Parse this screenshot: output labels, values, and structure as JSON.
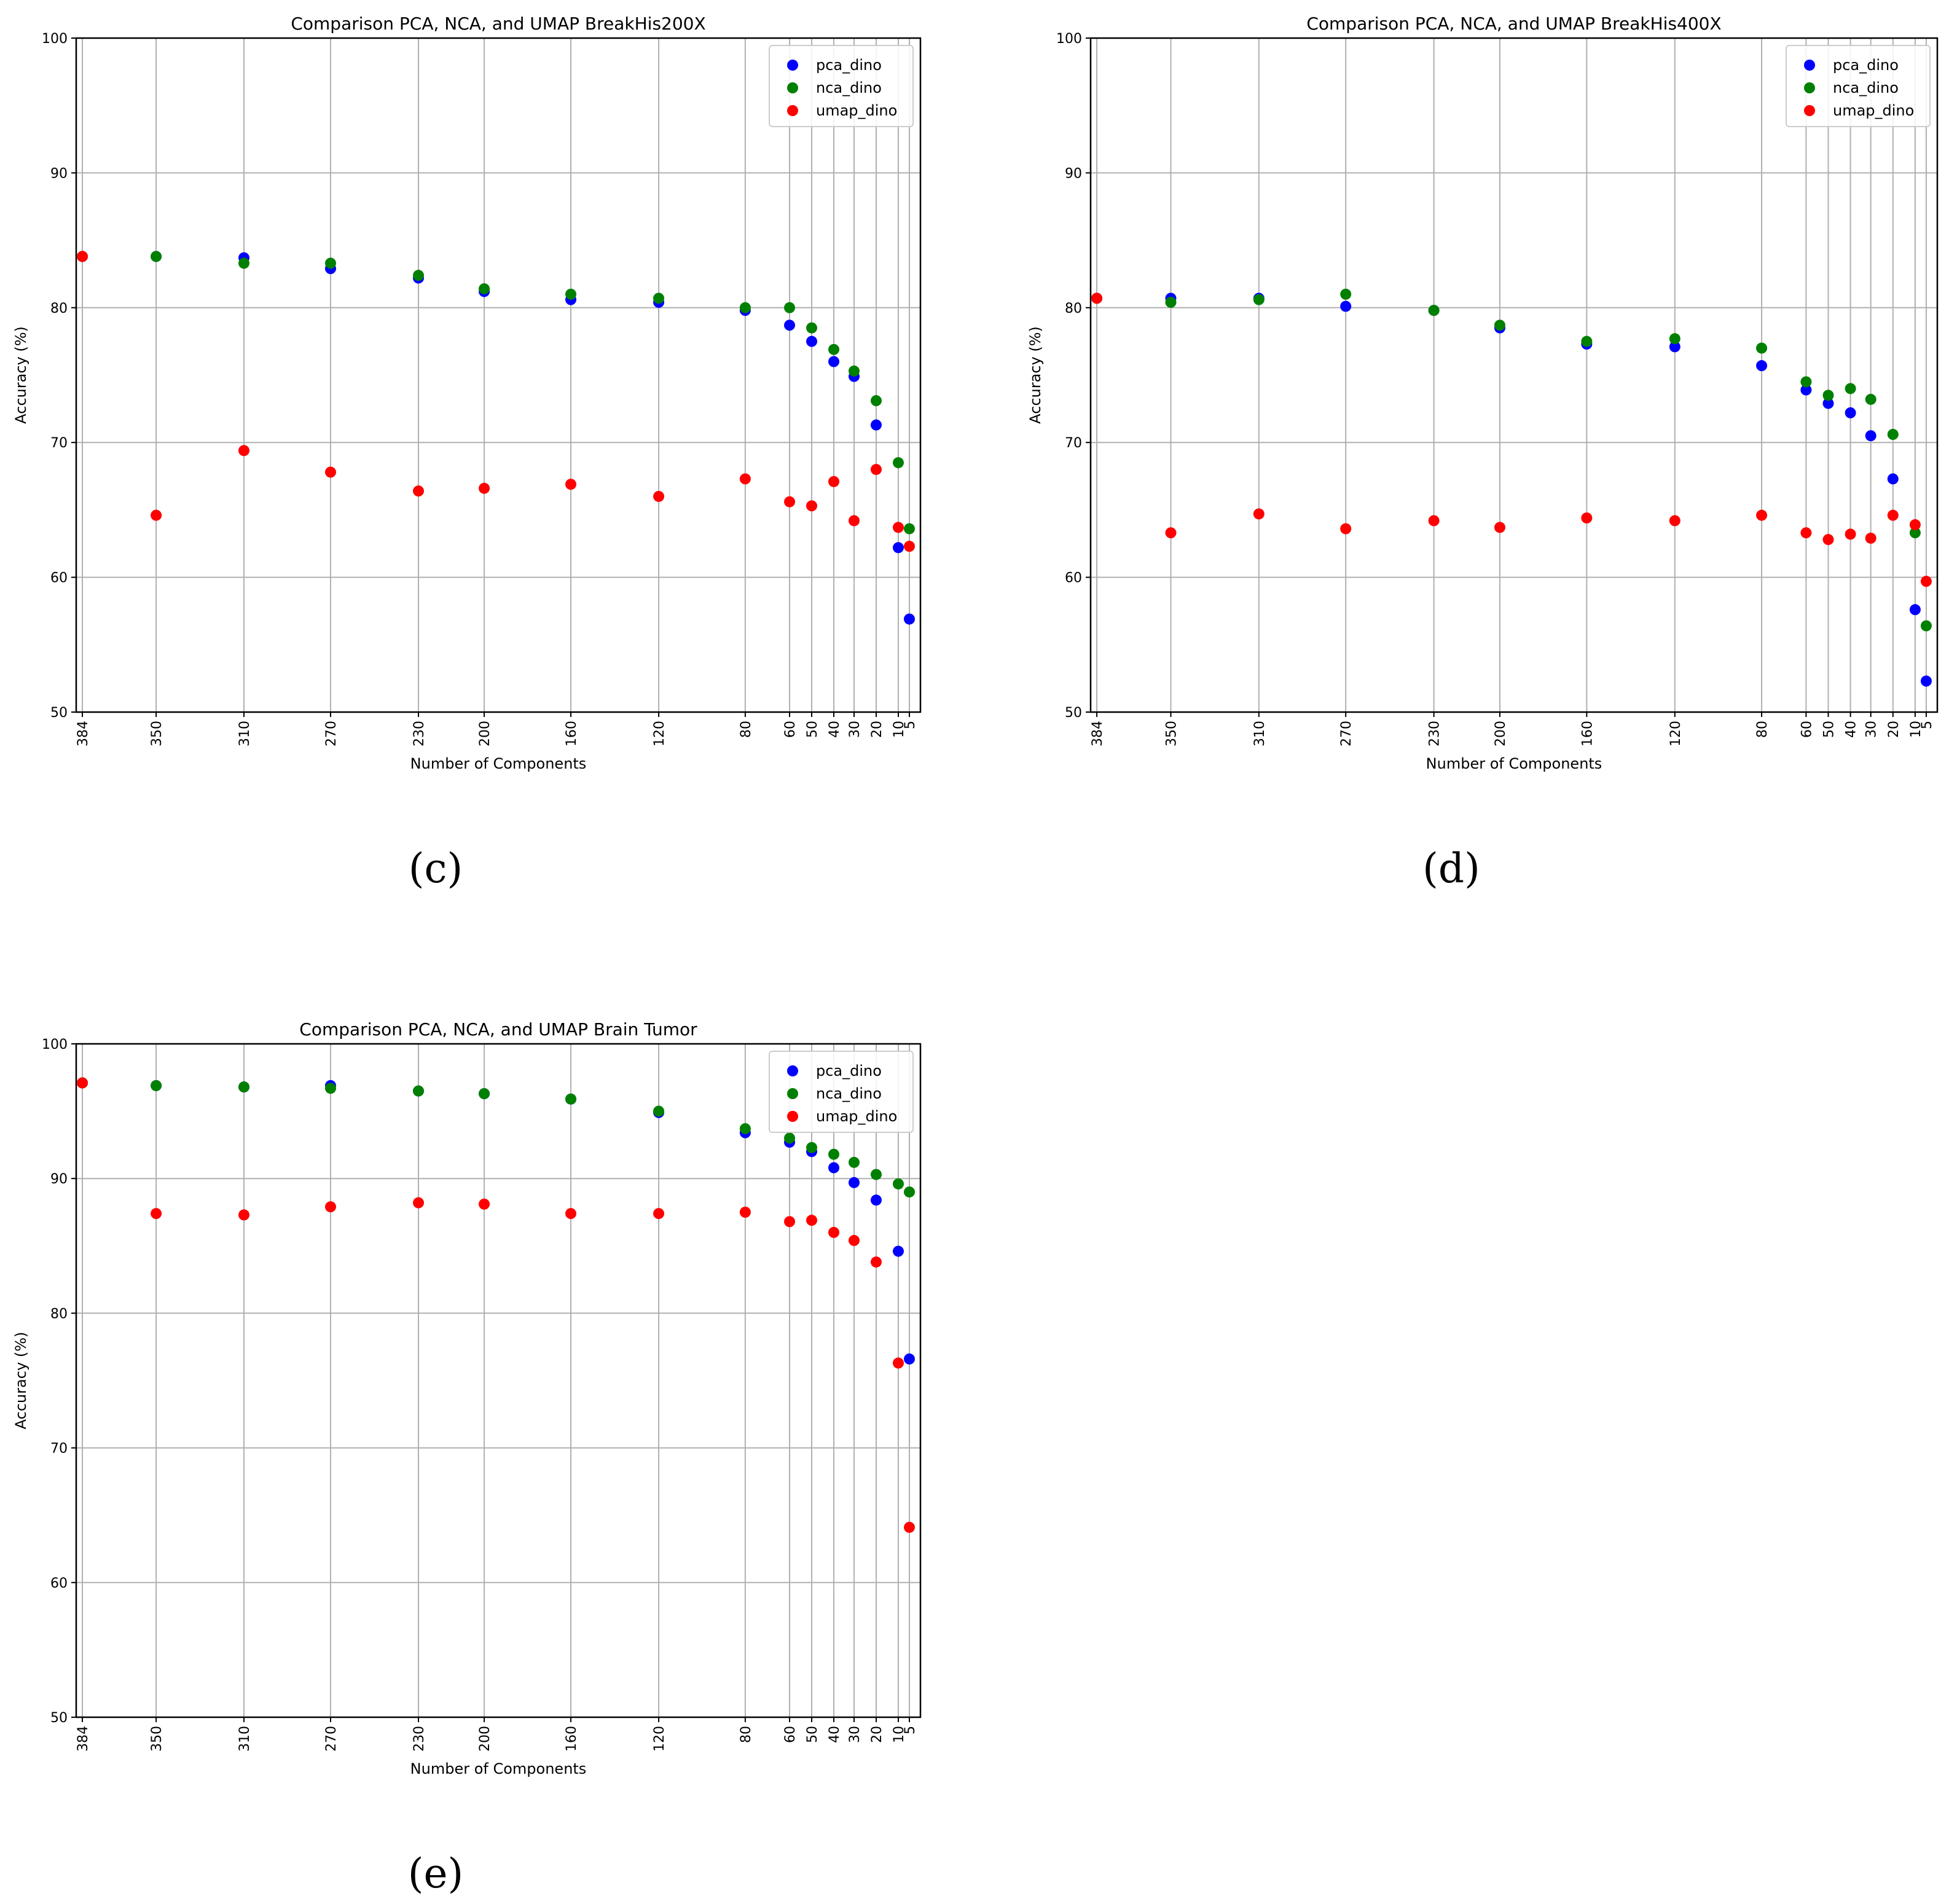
{
  "figure": {
    "captions": [
      "(c)",
      "(d)",
      "(e)"
    ]
  },
  "chart_data": [
    {
      "type": "scatter",
      "title": "Comparison PCA, NCA, and UMAP BreakHis200X",
      "xlabel": "Number of Components",
      "ylabel": "Accuracy (%)",
      "x_ticks": [
        384,
        350,
        310,
        270,
        230,
        200,
        160,
        120,
        80,
        60,
        50,
        40,
        30,
        20,
        10,
        5
      ],
      "x_axis": "categorical, descending left to right",
      "ylim": [
        50,
        100
      ],
      "y_ticks": [
        50,
        60,
        70,
        80,
        90,
        100
      ],
      "grid": true,
      "legend_position": "top-right",
      "series": [
        {
          "name": "pca_dino",
          "color": "#0000ff",
          "values": [
            83.8,
            83.8,
            83.7,
            82.9,
            82.2,
            81.2,
            80.6,
            80.4,
            79.8,
            78.7,
            77.5,
            76.0,
            74.9,
            71.3,
            62.2,
            56.9
          ]
        },
        {
          "name": "nca_dino",
          "color": "#008000",
          "values": [
            83.8,
            83.8,
            83.3,
            83.3,
            82.4,
            81.4,
            81.0,
            80.7,
            80.0,
            80.0,
            78.5,
            76.9,
            75.3,
            73.1,
            68.5,
            63.6
          ]
        },
        {
          "name": "umap_dino",
          "color": "#ff0000",
          "values": [
            83.8,
            64.6,
            69.4,
            67.8,
            66.4,
            66.6,
            66.9,
            66.0,
            67.3,
            65.6,
            65.3,
            67.1,
            64.2,
            68.0,
            63.7,
            62.3
          ]
        }
      ]
    },
    {
      "type": "scatter",
      "title": "Comparison PCA, NCA, and UMAP BreakHis400X",
      "xlabel": "Number of Components",
      "ylabel": "Accuracy (%)",
      "x_ticks": [
        384,
        350,
        310,
        270,
        230,
        200,
        160,
        120,
        80,
        60,
        50,
        40,
        30,
        20,
        10,
        5
      ],
      "x_axis": "categorical, descending left to right",
      "ylim": [
        50,
        100
      ],
      "y_ticks": [
        50,
        60,
        70,
        80,
        90,
        100
      ],
      "grid": true,
      "legend_position": "top-right",
      "series": [
        {
          "name": "pca_dino",
          "color": "#0000ff",
          "values": [
            80.7,
            80.7,
            80.7,
            80.1,
            79.8,
            78.5,
            77.3,
            77.1,
            75.7,
            73.9,
            72.9,
            72.2,
            70.5,
            67.3,
            57.6,
            52.3
          ]
        },
        {
          "name": "nca_dino",
          "color": "#008000",
          "values": [
            80.7,
            80.4,
            80.6,
            81.0,
            79.8,
            78.7,
            77.5,
            77.7,
            77.0,
            74.5,
            73.5,
            74.0,
            73.2,
            70.6,
            63.3,
            56.4
          ]
        },
        {
          "name": "umap_dino",
          "color": "#ff0000",
          "values": [
            80.7,
            63.3,
            64.7,
            63.6,
            64.2,
            63.7,
            64.4,
            64.2,
            64.6,
            63.3,
            62.8,
            63.2,
            62.9,
            64.6,
            63.9,
            59.7
          ]
        }
      ]
    },
    {
      "type": "scatter",
      "title": "Comparison PCA, NCA, and UMAP Brain Tumor",
      "xlabel": "Number of Components",
      "ylabel": "Accuracy (%)",
      "x_ticks": [
        384,
        350,
        310,
        270,
        230,
        200,
        160,
        120,
        80,
        60,
        50,
        40,
        30,
        20,
        10,
        5
      ],
      "x_axis": "categorical, descending left to right",
      "ylim": [
        50,
        100
      ],
      "y_ticks": [
        50,
        60,
        70,
        80,
        90,
        100
      ],
      "grid": true,
      "legend_position": "top-right",
      "series": [
        {
          "name": "pca_dino",
          "color": "#0000ff",
          "values": [
            97.1,
            96.9,
            96.8,
            96.9,
            96.5,
            96.3,
            95.9,
            94.9,
            93.4,
            92.7,
            92.0,
            90.8,
            89.7,
            88.4,
            84.6,
            76.6
          ]
        },
        {
          "name": "nca_dino",
          "color": "#008000",
          "values": [
            97.1,
            96.9,
            96.8,
            96.7,
            96.5,
            96.3,
            95.9,
            95.0,
            93.7,
            93.0,
            92.3,
            91.8,
            91.2,
            90.3,
            89.6,
            89.0
          ]
        },
        {
          "name": "umap_dino",
          "color": "#ff0000",
          "values": [
            97.1,
            87.4,
            87.3,
            87.9,
            88.2,
            88.1,
            87.4,
            87.4,
            87.5,
            86.8,
            86.9,
            86.0,
            85.4,
            83.8,
            76.3,
            64.1
          ]
        }
      ]
    }
  ]
}
